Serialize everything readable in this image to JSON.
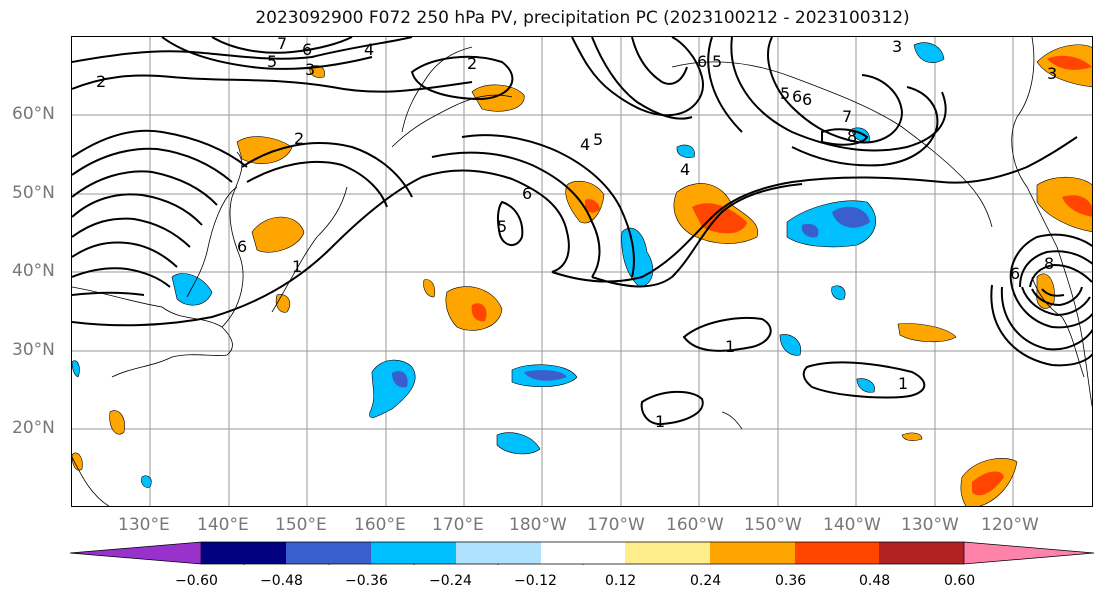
{
  "title": "2023092900 F072 250 hPa PV, precipitation PC (2023100212 - 2023100312)",
  "lat_labels": [
    "60°N",
    "50°N",
    "40°N",
    "30°N",
    "20°N"
  ],
  "lon_labels": [
    "130°E",
    "140°E",
    "150°E",
    "160°E",
    "170°E",
    "180°W",
    "170°W",
    "160°W",
    "150°W",
    "140°W",
    "130°W",
    "120°W"
  ],
  "colorbar": {
    "ticks": [
      "−0.60",
      "−0.48",
      "−0.36",
      "−0.24",
      "−0.12",
      "0.12",
      "0.24",
      "0.36",
      "0.48",
      "0.60"
    ],
    "colors": [
      "#9932cc",
      "#000080",
      "#3a5fcd",
      "#00bfff",
      "#b0e2ff",
      "#ffffff",
      "#ffec8b",
      "#ffa500",
      "#ff4500",
      "#b22222",
      "#ff82ab"
    ]
  },
  "contour_labels": {
    "l1": "2",
    "l2": "7",
    "l3": "6",
    "l4": "5",
    "l5": "3",
    "l6": "4",
    "l7": "2",
    "l8": "2",
    "l9": "6",
    "l10": "5",
    "l11": "4",
    "l12": "5",
    "l13": "6",
    "l14": "7",
    "l15": "6",
    "l16": "5",
    "l17": "8",
    "l18": "3",
    "l19": "4",
    "l20": "6",
    "l21": "5",
    "l22": "1",
    "l23": "1",
    "l24": "1",
    "l25": "1",
    "l26": "6",
    "l27": "8",
    "l28": "3",
    "l29": "6"
  }
}
